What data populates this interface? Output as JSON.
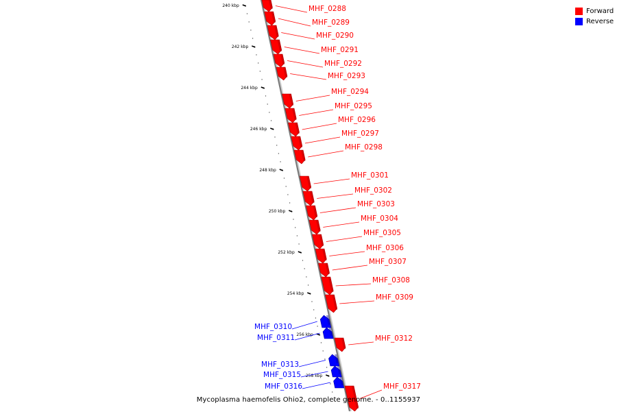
{
  "legend": {
    "forward_label": "Forward",
    "reverse_label": "Reverse",
    "forward_color": "#ff0000",
    "reverse_color": "#0000ff"
  },
  "caption": "Mycoplasma haemofelis Ohio2, complete genome. - 0..1155937",
  "ruler": {
    "unit": "kbp",
    "ticks": [
      {
        "kbp": 240,
        "label": "240 kbp"
      },
      {
        "kbp": 242,
        "label": "242 kbp"
      },
      {
        "kbp": 244,
        "label": "244 kbp"
      },
      {
        "kbp": 246,
        "label": "246 kbp"
      },
      {
        "kbp": 248,
        "label": "248 kbp"
      },
      {
        "kbp": 250,
        "label": "250 kbp"
      },
      {
        "kbp": 252,
        "label": "252 kbp"
      },
      {
        "kbp": 254,
        "label": "254 kbp"
      },
      {
        "kbp": 256,
        "label": "256 kbp"
      },
      {
        "kbp": 258,
        "label": "258 kbp"
      }
    ]
  },
  "genes": [
    {
      "name": "MHF_0288",
      "strand": "forward"
    },
    {
      "name": "MHF_0289",
      "strand": "forward"
    },
    {
      "name": "MHF_0290",
      "strand": "forward"
    },
    {
      "name": "MHF_0291",
      "strand": "forward"
    },
    {
      "name": "MHF_0292",
      "strand": "forward"
    },
    {
      "name": "MHF_0293",
      "strand": "forward"
    },
    {
      "name": "MHF_0294",
      "strand": "forward"
    },
    {
      "name": "MHF_0295",
      "strand": "forward"
    },
    {
      "name": "MHF_0296",
      "strand": "forward"
    },
    {
      "name": "MHF_0297",
      "strand": "forward"
    },
    {
      "name": "MHF_0298",
      "strand": "forward"
    },
    {
      "name": "MHF_0301",
      "strand": "forward"
    },
    {
      "name": "MHF_0302",
      "strand": "forward"
    },
    {
      "name": "MHF_0303",
      "strand": "forward"
    },
    {
      "name": "MHF_0304",
      "strand": "forward"
    },
    {
      "name": "MHF_0305",
      "strand": "forward"
    },
    {
      "name": "MHF_0306",
      "strand": "forward"
    },
    {
      "name": "MHF_0307",
      "strand": "forward"
    },
    {
      "name": "MHF_0308",
      "strand": "forward"
    },
    {
      "name": "MHF_0309",
      "strand": "forward"
    },
    {
      "name": "MHF_0310",
      "strand": "reverse"
    },
    {
      "name": "MHF_0311",
      "strand": "reverse"
    },
    {
      "name": "MHF_0312",
      "strand": "forward"
    },
    {
      "name": "MHF_0313",
      "strand": "reverse"
    },
    {
      "name": "MHF_0315",
      "strand": "reverse"
    },
    {
      "name": "MHF_0316",
      "strand": "reverse"
    },
    {
      "name": "MHF_0317",
      "strand": "forward"
    }
  ]
}
